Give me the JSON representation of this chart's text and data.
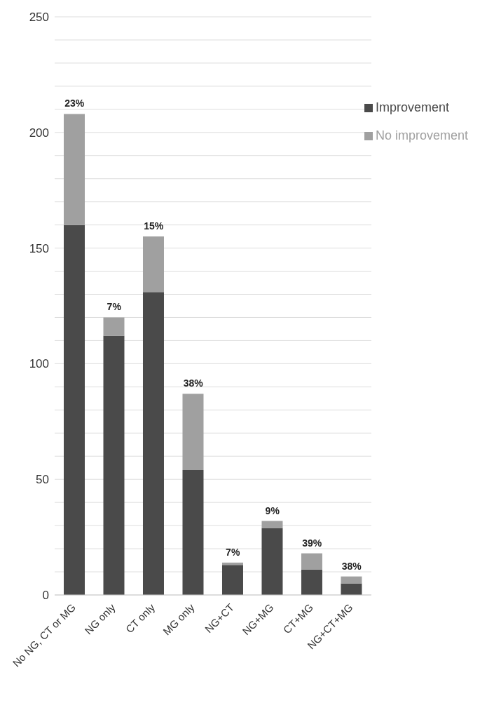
{
  "chart_data": {
    "type": "bar",
    "stacked": true,
    "categories": [
      "No NG, CT or MG",
      "NG only",
      "CT only",
      "MG only",
      "NG+CT",
      "NG+MG",
      "CT+MG",
      "NG+CT+MG"
    ],
    "series": [
      {
        "name": "Improvement",
        "color": "#4a4a4a",
        "values": [
          160,
          112,
          131,
          54,
          13,
          29,
          11,
          5
        ]
      },
      {
        "name": "No improvement",
        "color": "#a0a0a0",
        "values": [
          48,
          8,
          24,
          33,
          1,
          3,
          7,
          3
        ]
      }
    ],
    "ylim": [
      0,
      250
    ],
    "yticks": [
      0,
      {
        "value": 10,
        "label": null
      },
      {
        "value": 20,
        "label": null
      },
      {
        "value": 30,
        "label": null
      },
      {
        "value": 40,
        "label": null
      },
      50,
      {
        "value": 60,
        "label": null
      },
      {
        "value": 70,
        "label": null
      },
      {
        "value": 80,
        "label": null
      },
      {
        "value": 90,
        "label": null
      },
      100,
      {
        "value": 110,
        "label": null
      },
      {
        "value": 120,
        "label": null
      },
      {
        "value": 130,
        "label": null
      },
      {
        "value": 140,
        "label": null
      },
      150,
      {
        "value": 160,
        "label": null
      },
      {
        "value": 170,
        "label": null
      },
      {
        "value": 180,
        "label": null
      },
      {
        "value": 190,
        "label": null
      },
      200,
      {
        "value": 210,
        "label": null
      },
      {
        "value": 220,
        "label": null
      },
      {
        "value": 230,
        "label": null
      },
      {
        "value": 240,
        "label": null
      },
      250
    ],
    "grid": "y",
    "legend": "top right",
    "annotations": [
      {
        "text": "23%",
        "x": "No NG, CT or MG",
        "y": 208
      },
      {
        "text": "7%",
        "x": "NG only",
        "y": 120
      },
      {
        "text": "15%",
        "x": "CT only",
        "y": 155
      },
      {
        "text": "38%",
        "x": "MG only",
        "y": 87
      },
      {
        "text": "7%",
        "x": "NG+CT",
        "y": 14
      },
      {
        "text": "9%",
        "x": "NG+MG",
        "y": 32
      },
      {
        "text": "39%",
        "x": "CT+MG",
        "y": 18
      },
      {
        "text": "38%",
        "x": "NG+CT+MG",
        "y": 8
      }
    ]
  }
}
